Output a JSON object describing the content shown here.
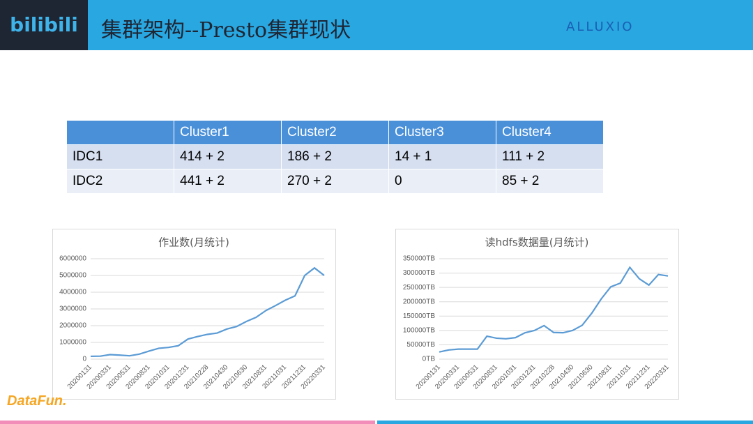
{
  "header": {
    "logo": "bilibili",
    "title": "集群架构--Presto集群现状",
    "partner": "ALLUXIO"
  },
  "table": {
    "header": [
      "Cluster1",
      "Cluster2",
      "Cluster3",
      "Cluster4"
    ],
    "rows": [
      [
        "IDC1",
        "414 + 2",
        "186 + 2",
        "14 + 1",
        "111 + 2"
      ],
      [
        "IDC2",
        "441 + 2",
        "270 + 2",
        "0",
        "85 + 2"
      ]
    ]
  },
  "chart_data": [
    {
      "type": "line",
      "title": "作业数(月统计)",
      "categories": [
        "20200131",
        null,
        "20200331",
        null,
        "20200531",
        null,
        "20200831",
        null,
        "20201031",
        null,
        "20201231",
        null,
        "20210228",
        null,
        "20210430",
        null,
        "20210630",
        null,
        "20210831",
        null,
        "20211031",
        null,
        "20211231",
        null,
        "20220331"
      ],
      "series": [
        {
          "color": "#5b9bd5",
          "values": [
            170000,
            180000,
            270000,
            240000,
            200000,
            300000,
            480000,
            650000,
            700000,
            800000,
            1200000,
            1350000,
            1480000,
            1560000,
            1800000,
            1950000,
            2250000,
            2500000,
            2900000,
            3200000,
            3520000,
            3780000,
            5000000,
            5450000,
            5000000
          ]
        }
      ],
      "ylim": [
        0,
        6000000
      ],
      "yticks": [
        0,
        1000000,
        2000000,
        3000000,
        4000000,
        5000000,
        6000000
      ],
      "grid": true
    },
    {
      "type": "line",
      "title": "读hdfs数据量(月统计)",
      "categories": [
        "20200131",
        null,
        "20200331",
        null,
        "20200531",
        null,
        "20200831",
        null,
        "20201031",
        null,
        "20201231",
        null,
        "20210228",
        null,
        "20210430",
        null,
        "20210630",
        null,
        "20210831",
        null,
        "20211031",
        null,
        "20211231",
        null,
        "20220331"
      ],
      "series": [
        {
          "color": "#5b9bd5",
          "values": [
            25000,
            32000,
            35000,
            35000,
            35000,
            80000,
            73000,
            71000,
            75000,
            92000,
            100000,
            117000,
            93000,
            92000,
            100000,
            118000,
            160000,
            210000,
            252000,
            265000,
            320000,
            280000,
            258000,
            295000,
            290000
          ]
        }
      ],
      "ylim": [
        0,
        350000
      ],
      "yticks": [
        {
          "value": 0,
          "label": "0TB"
        },
        {
          "value": 50000,
          "label": "50000TB"
        },
        {
          "value": 100000,
          "label": "100000TB"
        },
        {
          "value": 150000,
          "label": "150000TB"
        },
        {
          "value": 200000,
          "label": "200000TB"
        },
        {
          "value": 250000,
          "label": "250000TB"
        },
        {
          "value": 300000,
          "label": "300000TB"
        },
        {
          "value": 350000,
          "label": "350000TB"
        }
      ],
      "grid": true
    }
  ],
  "footer": {
    "brand": "DataFun."
  }
}
